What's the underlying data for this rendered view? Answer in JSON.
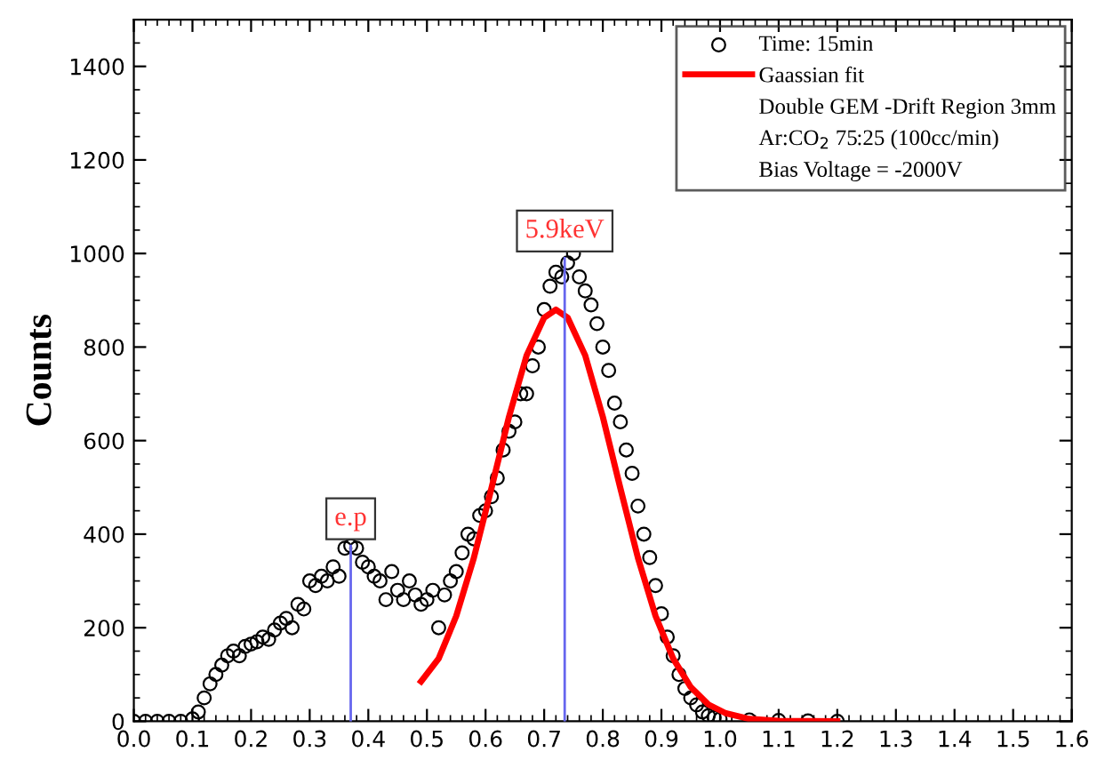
{
  "chart_data": {
    "type": "scatter",
    "ylabel": "Counts",
    "xlim": [
      0.0,
      1.6
    ],
    "ylim": [
      0,
      1500
    ],
    "xticks": [
      {
        "value": 0.0,
        "label": "0.0"
      },
      0.1,
      0.2,
      0.3,
      0.4,
      0.5,
      0.6,
      0.7,
      0.8,
      0.9,
      {
        "value": 1.0,
        "label": "1.0"
      },
      1.1,
      1.2,
      1.3,
      1.4,
      1.5,
      {
        "value": 1.6,
        "label": "1.6"
      }
    ],
    "yticks": [
      0,
      200,
      400,
      600,
      800,
      1000,
      1200,
      1400
    ],
    "grid": false,
    "legend": "top right",
    "series": [
      {
        "name": "Time: 15min",
        "marker": "circle",
        "color": "#000000",
        "x": [
          0.0,
          0.02,
          0.04,
          0.06,
          0.08,
          0.1,
          0.11,
          0.12,
          0.13,
          0.14,
          0.15,
          0.16,
          0.17,
          0.18,
          0.19,
          0.2,
          0.21,
          0.22,
          0.23,
          0.24,
          0.25,
          0.26,
          0.27,
          0.28,
          0.29,
          0.3,
          0.31,
          0.32,
          0.33,
          0.34,
          0.35,
          0.36,
          0.37,
          0.38,
          0.39,
          0.4,
          0.41,
          0.42,
          0.43,
          0.44,
          0.45,
          0.46,
          0.47,
          0.48,
          0.49,
          0.5,
          0.51,
          0.52,
          0.53,
          0.54,
          0.55,
          0.56,
          0.57,
          0.58,
          0.59,
          0.6,
          0.61,
          0.62,
          0.63,
          0.64,
          0.65,
          0.66,
          0.67,
          0.68,
          0.69,
          0.7,
          0.71,
          0.72,
          0.73,
          0.74,
          0.75,
          0.76,
          0.77,
          0.78,
          0.79,
          0.8,
          0.81,
          0.82,
          0.83,
          0.84,
          0.85,
          0.86,
          0.87,
          0.88,
          0.89,
          0.9,
          0.91,
          0.92,
          0.93,
          0.94,
          0.95,
          0.96,
          0.97,
          0.98,
          0.99,
          1.0,
          1.05,
          1.1,
          1.15,
          1.2
        ],
        "values": [
          0,
          0,
          0,
          0,
          0,
          5,
          20,
          50,
          80,
          100,
          120,
          140,
          150,
          140,
          160,
          165,
          170,
          180,
          175,
          195,
          210,
          220,
          200,
          250,
          240,
          300,
          290,
          310,
          300,
          330,
          310,
          370,
          375,
          370,
          340,
          330,
          310,
          300,
          260,
          320,
          280,
          260,
          300,
          270,
          250,
          260,
          280,
          200,
          270,
          300,
          320,
          360,
          400,
          390,
          440,
          450,
          480,
          520,
          580,
          620,
          640,
          700,
          700,
          760,
          800,
          880,
          930,
          960,
          950,
          980,
          1000,
          950,
          920,
          890,
          850,
          800,
          750,
          680,
          640,
          580,
          530,
          460,
          400,
          350,
          290,
          230,
          180,
          140,
          100,
          70,
          50,
          35,
          20,
          12,
          8,
          5,
          3,
          2,
          1,
          0
        ]
      },
      {
        "name": "Gaassian fit",
        "type": "line",
        "line_style": "solid",
        "color": "#ff0000",
        "x": [
          0.49,
          0.52,
          0.55,
          0.58,
          0.61,
          0.64,
          0.67,
          0.7,
          0.72,
          0.74,
          0.77,
          0.8,
          0.83,
          0.86,
          0.89,
          0.92,
          0.95,
          0.98,
          1.01,
          1.05,
          1.1,
          1.2
        ],
        "values": [
          85,
          134,
          225,
          349,
          498,
          651,
          782,
          863,
          880,
          863,
          782,
          651,
          498,
          349,
          225,
          134,
          73,
          36,
          17,
          5,
          1,
          0
        ]
      }
    ],
    "annotations": [
      "Double GEM -Drift Region 3mm",
      "Ar:CO$_{2}$ 75:25 (100cc/min)",
      "Bias Voltage = -2000V",
      {
        "text": "e.p",
        "x": 0.37,
        "y": 375
      },
      {
        "text": "5.9keV",
        "x": 0.735,
        "y": 990
      }
    ]
  }
}
